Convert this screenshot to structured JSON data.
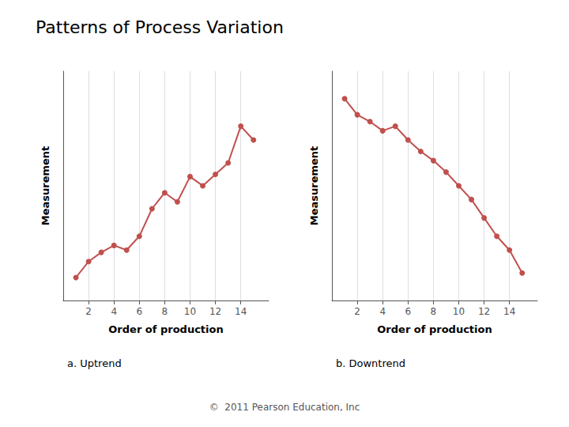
{
  "title": "Patterns of Process Variation",
  "annotations": [
    "©  2011 Pearson Education, Inc"
  ],
  "chart_data": [
    {
      "type": "line",
      "subtitle": "a. Uptrend",
      "xlabel": "Order of production",
      "ylabel": "Measurement",
      "x": [
        1,
        2,
        3,
        4,
        5,
        6,
        7,
        8,
        9,
        10,
        11,
        12,
        13,
        14,
        15
      ],
      "values": [
        0.1,
        0.17,
        0.21,
        0.24,
        0.22,
        0.28,
        0.4,
        0.47,
        0.43,
        0.54,
        0.5,
        0.55,
        0.6,
        0.76,
        0.7
      ],
      "color": "#c0504d",
      "marker": "circle",
      "xlim": [
        0,
        16.2
      ],
      "xticks": [
        2,
        4,
        6,
        8,
        10,
        12,
        14
      ],
      "ylim": [
        0,
        1.0
      ],
      "grid": true,
      "tick_labels": "x"
    },
    {
      "type": "line",
      "subtitle": "b. Downtrend",
      "xlabel": "Order of production",
      "ylabel": "Measurement",
      "x": [
        1,
        2,
        3,
        4,
        5,
        6,
        7,
        8,
        9,
        10,
        11,
        12,
        13,
        14,
        15
      ],
      "values": [
        0.88,
        0.81,
        0.78,
        0.74,
        0.76,
        0.7,
        0.65,
        0.61,
        0.56,
        0.5,
        0.44,
        0.36,
        0.28,
        0.22,
        0.12
      ],
      "color": "#c0504d",
      "marker": "circle",
      "xlim": [
        0,
        16.2
      ],
      "xticks": [
        2,
        4,
        6,
        8,
        10,
        12,
        14
      ],
      "ylim": [
        0,
        1.0
      ],
      "grid": true,
      "tick_labels": "x"
    }
  ]
}
